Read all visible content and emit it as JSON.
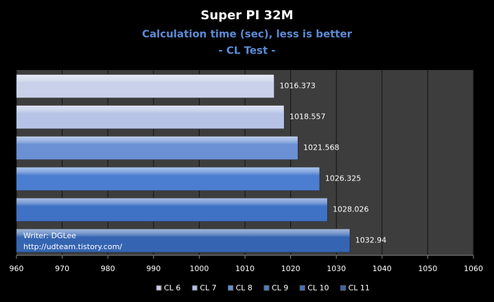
{
  "chart_data": {
    "type": "hbar",
    "title": "Super PI 32M",
    "subtitle": "Calculation time (sec), less is better",
    "subtitle2": "- CL Test -",
    "series": [
      {
        "name": "CL 6",
        "color": "#c9d1ea",
        "values": [
          1016.373
        ]
      },
      {
        "name": "CL 7",
        "color": "#b6c3e6",
        "values": [
          1018.557
        ]
      },
      {
        "name": "CL 8",
        "color": "#6b90d4",
        "values": [
          1021.568
        ]
      },
      {
        "name": "CL 9",
        "color": "#4b7ed0",
        "values": [
          1026.325
        ]
      },
      {
        "name": "CL 10",
        "color": "#3f71c4",
        "values": [
          1028.026
        ]
      },
      {
        "name": "CL 11",
        "color": "#3565b2",
        "values": [
          1032.94
        ]
      }
    ],
    "xlim": [
      960,
      1060
    ],
    "xticks": [
      960,
      970,
      980,
      990,
      1000,
      1010,
      1020,
      1030,
      1040,
      1050,
      1060
    ],
    "grid": true,
    "legend": "bottom",
    "annotations": [
      "Writer: DGLee",
      "http://udteam.tistory.com/"
    ]
  }
}
